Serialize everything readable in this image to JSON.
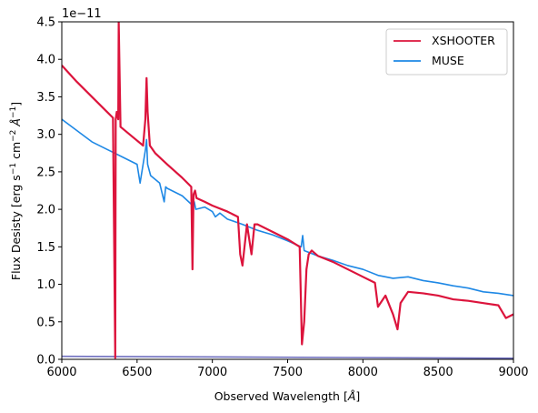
{
  "chart_data": {
    "type": "line",
    "title": "",
    "xlabel": "Observed Wavelength [Å]",
    "ylabel": "Flux Desisty [erg s⁻¹ cm⁻² Å⁻¹]",
    "xlabel_main": "Observed Wavelength [",
    "xlabel_unit": "Å",
    "xlabel_end": "]",
    "ylabel_main": "Flux Desisty [erg s",
    "ylabel_s_exp": "−1",
    "ylabel_cm": " cm",
    "ylabel_cm_exp": "−2",
    "ylabel_A": " Å",
    "ylabel_A_exp": "−1",
    "ylabel_end": "]",
    "y_offset_text": "1e−11",
    "xlim": [
      6000,
      9000
    ],
    "ylim": [
      0,
      4.5
    ],
    "x_ticks": [
      6000,
      6500,
      7000,
      7500,
      8000,
      8500,
      9000
    ],
    "x_tick_labels": [
      "6000",
      "6500",
      "7000",
      "7500",
      "8000",
      "8500",
      "9000"
    ],
    "y_ticks": [
      0,
      0.5,
      1.0,
      1.5,
      2.0,
      2.5,
      3.0,
      3.5,
      4.0,
      4.5
    ],
    "y_tick_labels": [
      "0.0",
      "0.5",
      "1.0",
      "1.5",
      "2.0",
      "2.5",
      "3.0",
      "3.5",
      "4.0",
      "4.5"
    ],
    "grid": false,
    "legend_position": "top-right",
    "series": [
      {
        "name": "XSHOOTER",
        "color": "#dc143c",
        "x": [
          6000,
          6100,
          6200,
          6250,
          6300,
          6340,
          6355,
          6358,
          6365,
          6375,
          6378,
          6390,
          6420,
          6480,
          6540,
          6555,
          6563,
          6570,
          6585,
          6620,
          6700,
          6800,
          6860,
          6868,
          6875,
          6885,
          6895,
          6950,
          7000,
          7100,
          7170,
          7185,
          7200,
          7230,
          7260,
          7280,
          7300,
          7400,
          7500,
          7580,
          7595,
          7610,
          7625,
          7640,
          7660,
          7700,
          7800,
          7900,
          8000,
          8080,
          8100,
          8150,
          8200,
          8230,
          8250,
          8300,
          8400,
          8500,
          8600,
          8700,
          8800,
          8900,
          8950,
          9000
        ],
        "y": [
          3.92,
          3.7,
          3.5,
          3.4,
          3.3,
          3.22,
          0.02,
          3.2,
          3.3,
          3.2,
          4.5,
          3.1,
          3.05,
          2.95,
          2.85,
          3.2,
          3.75,
          3.3,
          2.85,
          2.75,
          2.6,
          2.42,
          2.3,
          1.2,
          2.2,
          2.25,
          2.15,
          2.1,
          2.05,
          1.97,
          1.9,
          1.4,
          1.25,
          1.8,
          1.4,
          1.8,
          1.8,
          1.7,
          1.6,
          1.5,
          0.2,
          0.5,
          1.2,
          1.4,
          1.45,
          1.38,
          1.3,
          1.2,
          1.1,
          1.02,
          0.7,
          0.85,
          0.6,
          0.4,
          0.75,
          0.9,
          0.88,
          0.85,
          0.8,
          0.78,
          0.75,
          0.72,
          0.55,
          0.6
        ]
      },
      {
        "name": "MUSE",
        "color": "#1e88e5",
        "x": [
          6000,
          6100,
          6200,
          6300,
          6400,
          6500,
          6520,
          6540,
          6556,
          6563,
          6570,
          6590,
          6650,
          6680,
          6690,
          6700,
          6800,
          6870,
          6880,
          6890,
          6950,
          7000,
          7020,
          7050,
          7100,
          7200,
          7300,
          7400,
          7500,
          7590,
          7600,
          7610,
          7700,
          7800,
          7900,
          8000,
          8100,
          8200,
          8300,
          8400,
          8500,
          8600,
          8700,
          8800,
          8900,
          9000
        ],
        "y": [
          3.2,
          3.05,
          2.9,
          2.8,
          2.7,
          2.6,
          2.35,
          2.6,
          2.8,
          2.93,
          2.6,
          2.45,
          2.35,
          2.1,
          2.3,
          2.28,
          2.18,
          2.05,
          2.1,
          2.0,
          2.03,
          1.97,
          1.9,
          1.95,
          1.87,
          1.8,
          1.72,
          1.66,
          1.58,
          1.5,
          1.65,
          1.45,
          1.38,
          1.32,
          1.25,
          1.2,
          1.12,
          1.08,
          1.1,
          1.05,
          1.02,
          0.98,
          0.95,
          0.9,
          0.88,
          0.85
        ]
      }
    ],
    "floor_lines": [
      {
        "color": "#6f6fbf",
        "x": [
          6000,
          9000
        ],
        "y": [
          0.04,
          0.015
        ]
      }
    ]
  }
}
